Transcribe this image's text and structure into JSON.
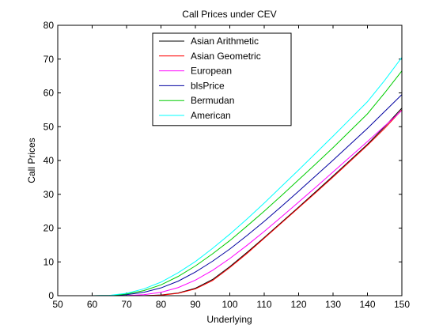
{
  "chart_data": {
    "type": "line",
    "title": "Call Prices under CEV",
    "xlabel": "Underlying",
    "ylabel": "Call Prices",
    "xlim": [
      50,
      150
    ],
    "ylim": [
      0,
      80
    ],
    "xticks": [
      50,
      60,
      70,
      80,
      90,
      100,
      110,
      120,
      130,
      140,
      150
    ],
    "yticks": [
      0,
      10,
      20,
      30,
      40,
      50,
      60,
      70,
      80
    ],
    "grid": false,
    "legend_position": "top-center",
    "x": [
      50,
      55,
      60,
      65,
      70,
      75,
      80,
      85,
      90,
      95,
      100,
      105,
      110,
      115,
      120,
      125,
      130,
      135,
      140,
      145,
      150
    ],
    "series": [
      {
        "name": "Asian Arithmetic",
        "color": "#000000",
        "values": [
          0,
          0,
          0,
          0,
          0,
          0,
          0.2,
          0.8,
          2.2,
          4.8,
          8.6,
          12.8,
          17.2,
          21.7,
          26.2,
          30.8,
          35.4,
          40.1,
          44.8,
          50.0,
          55.5
        ]
      },
      {
        "name": "Asian Geometric",
        "color": "#ff0000",
        "values": [
          0,
          0,
          0,
          0,
          0,
          0,
          0.15,
          0.7,
          2.0,
          4.5,
          8.3,
          12.5,
          17.0,
          21.5,
          26.0,
          30.5,
          35.1,
          39.8,
          44.5,
          49.5,
          55.0
        ]
      },
      {
        "name": "European",
        "color": "#ff00ff",
        "values": [
          0,
          0,
          0,
          0,
          0.05,
          0.3,
          1.0,
          2.4,
          4.6,
          7.5,
          11.0,
          14.9,
          19.0,
          23.3,
          27.7,
          32.1,
          36.6,
          41.1,
          45.6,
          50.2,
          54.8
        ]
      },
      {
        "name": "blsPrice",
        "color": "#0000a0",
        "values": [
          0,
          0,
          0,
          0.05,
          0.3,
          1.0,
          2.3,
          4.3,
          7.0,
          10.2,
          13.8,
          17.8,
          22.0,
          26.4,
          30.9,
          35.5,
          40.1,
          44.8,
          49.5,
          54.5,
          59.5
        ]
      },
      {
        "name": "Bermudan",
        "color": "#00cc00",
        "values": [
          0,
          0,
          0,
          0.05,
          0.5,
          1.5,
          3.2,
          5.7,
          8.8,
          12.4,
          16.3,
          20.6,
          25.0,
          29.6,
          34.3,
          39.0,
          43.8,
          48.8,
          53.8,
          60.0,
          66.5
        ]
      },
      {
        "name": "American",
        "color": "#00ffff",
        "values": [
          0,
          0,
          0,
          0.1,
          0.7,
          2.0,
          4.0,
          6.8,
          10.1,
          14.0,
          18.2,
          22.7,
          27.4,
          32.3,
          37.2,
          42.2,
          47.2,
          52.3,
          57.4,
          63.7,
          70.5
        ]
      }
    ]
  }
}
